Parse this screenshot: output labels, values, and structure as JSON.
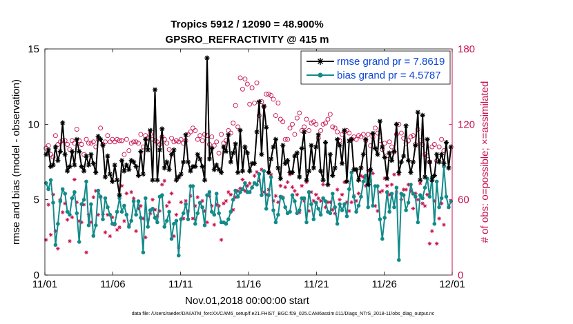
{
  "chart_data": {
    "type": "line",
    "title": "Tropics 5912 / 12090 = 48.900%",
    "subtitle": "GPSRO_REFRACTIVITY @ 415 m",
    "xlabel": "Nov.01,2018 00:00:00 start",
    "ylabel": "rmse and bias (model - observation)",
    "y2label": "# of obs: o=possible; ×=assimilated",
    "footer": "data file: /Users/raeder/DAI/ATM_forcXX/CAM6_setup/f.e21.FHIST_BGC.f09_025.CAM6assim.011/Diags_NTrS_2018-11/obs_diag_output.nc",
    "xlim": [
      0,
      30
    ],
    "ylim": [
      0,
      15
    ],
    "y2lim": [
      0,
      180
    ],
    "x_tick_values": [
      0,
      5,
      10,
      15,
      20,
      25,
      30
    ],
    "x_tick_labels": [
      "11/01",
      "11/06",
      "11/11",
      "11/16",
      "11/21",
      "11/26",
      "12/01"
    ],
    "y_tick_values": [
      0,
      5,
      10,
      15
    ],
    "y_tick_labels": [
      "0",
      "5",
      "10",
      "15"
    ],
    "y2_tick_values": [
      0,
      60,
      120,
      180
    ],
    "y2_tick_labels": [
      "0",
      "60",
      "120",
      "180"
    ],
    "legend": {
      "location": "top-right",
      "entries": [
        "rmse grand pr = 7.8619",
        "bias grand pr = 4.5787"
      ]
    },
    "colors": {
      "rmse": "#000000",
      "bias": "#128a8a",
      "obs": "#c8104e",
      "legend_text": "#0a46d6",
      "y2": "#c8104e"
    },
    "series": [
      {
        "name": "rmse",
        "axis": "left",
        "values": [
          8.0,
          8.3,
          7.2,
          7.3,
          8.5,
          7.6,
          8.2,
          10.1,
          8.0,
          6.9,
          7.2,
          8.2,
          7.3,
          9.0,
          8.2,
          7.2,
          6.9,
          7.9,
          7.3,
          8.0,
          7.4,
          6.8,
          9.2,
          9.0,
          8.6,
          6.5,
          7.9,
          6.7,
          6.2,
          7.3,
          6.3,
          5.3,
          7.6,
          6.9,
          7.3,
          7.0,
          7.6,
          7.5,
          7.2,
          6.6,
          8.2,
          6.7,
          9.0,
          8.3,
          9.6,
          6.3,
          12.3,
          6.3,
          8.3,
          9.7,
          7.1,
          7.5,
          7.0,
          8.0,
          8.3,
          6.3,
          6.5,
          6.7,
          7.5,
          9.3,
          7.5,
          6.9,
          7.2,
          7.2,
          8.0,
          7.7,
          7.2,
          6.3,
          14.4,
          7.7,
          8.4,
          7.0,
          7.3,
          7.0,
          6.8,
          8.5,
          8.2,
          9.3,
          7.5,
          8.1,
          8.7,
          6.8,
          9.6,
          6.9,
          8.5,
          8.1,
          6.9,
          7.4,
          7.4,
          9.5,
          11.5,
          8.0,
          11.2,
          9.8,
          6.8,
          7.7,
          8.5,
          9.0,
          7.1,
          6.4,
          8.6,
          7.4,
          7.6,
          6.8,
          6.8,
          7.9,
          8.1,
          6.5,
          8.4,
          9.5,
          6.3,
          6.9,
          8.6,
          7.1,
          8.5,
          9.3,
          6.9,
          6.3,
          8.8,
          6.0,
          8.0,
          6.6,
          7.1,
          9.0,
          8.6,
          7.4,
          9.6,
          6.2,
          8.9,
          9.0,
          7.0,
          7.0,
          6.3,
          7.1,
          8.0,
          9.0,
          6.0,
          7.0,
          9.4,
          8.4,
          8.0,
          10.2,
          8.5,
          7.8,
          6.4,
          8.1,
          7.6,
          8.2,
          10.0,
          6.8,
          7.5,
          7.9,
          9.9,
          7.6,
          6.8,
          7.5,
          8.6,
          10.8,
          6.3,
          10.6,
          6.5,
          9.0,
          7.5,
          6.3,
          6.6,
          8.0,
          7.5,
          8.0,
          7.4,
          8.8,
          7.1,
          8.5
        ]
      },
      {
        "name": "bias",
        "axis": "left",
        "values": [
          6.1,
          5.7,
          6.3,
          4.8,
          2.0,
          3.4,
          4.9,
          5.7,
          5.4,
          4.2,
          4.0,
          5.1,
          5.5,
          4.1,
          2.2,
          4.7,
          5.0,
          6.2,
          3.3,
          4.7,
          2.6,
          3.3,
          5.6,
          5.2,
          3.7,
          5.1,
          4.5,
          4.0,
          3.4,
          3.4,
          4.2,
          5.1,
          4.2,
          4.6,
          4.0,
          3.2,
          3.6,
          4.9,
          4.0,
          4.9,
          3.8,
          1.5,
          5.1,
          3.2,
          4.3,
          4.4,
          3.8,
          3.5,
          5.2,
          5.3,
          3.2,
          3.6,
          4.2,
          2.4,
          3.4,
          3.6,
          1.3,
          3.7,
          4.1,
          4.7,
          3.7,
          5.9,
          5.9,
          3.4,
          4.1,
          4.8,
          4.5,
          3.3,
          5.3,
          5.5,
          4.2,
          4.0,
          5.4,
          4.1,
          3.5,
          3.5,
          3.4,
          3.7,
          4.2,
          5.0,
          5.6,
          5.2,
          5.5,
          5.7,
          6.1,
          5.5,
          5.5,
          5.8,
          6.1,
          6.0,
          6.7,
          5.3,
          6.9,
          4.4,
          5.3,
          6.5,
          4.3,
          3.5,
          4.0,
          5.2,
          5.1,
          4.5,
          4.1,
          4.2,
          5.3,
          4.9,
          4.1,
          4.3,
          5.1,
          5.1,
          3.5,
          5.5,
          4.7,
          3.7,
          4.8,
          4.4,
          4.0,
          5.1,
          4.9,
          4.2,
          4.1,
          5.4,
          4.5,
          3.4,
          4.7,
          4.3,
          4.7,
          3.9,
          5.7,
          6.8,
          5.2,
          4.2,
          4.6,
          5.2,
          6.2,
          6.6,
          4.5,
          6.9,
          4.6,
          5.9,
          5.9,
          3.7,
          2.4,
          3.8,
          5.5,
          4.2,
          5.4,
          4.5,
          5.8,
          1.0,
          5.4,
          5.3,
          4.3,
          4.8,
          6.0,
          5.4,
          5.2,
          3.5,
          5.3,
          5.1,
          5.8,
          6.4,
          5.2,
          6.5,
          3.4,
          6.2,
          4.5,
          5.1,
          7.2,
          5.2,
          4.5,
          4.9
        ]
      },
      {
        "name": "obs possible (o)",
        "axis": "right",
        "values": [
          101,
          103,
          96,
          94,
          111,
          104,
          106,
          107,
          107,
          104,
          100,
          107,
          105,
          116,
          107,
          104,
          96,
          108,
          105,
          105,
          106,
          102,
          108,
          117,
          104,
          106,
          111,
          106,
          108,
          106,
          108,
          107,
          107,
          96,
          108,
          99,
          105,
          106,
          106,
          105,
          112,
          102,
          111,
          109,
          112,
          108,
          107,
          106,
          104,
          110,
          108,
          105,
          100,
          109,
          106,
          107,
          106,
          108,
          105,
          107,
          112,
          114,
          117,
          115,
          108,
          111,
          107,
          112,
          111,
          104,
          110,
          103,
          106,
          97,
          112,
          105,
          107,
          115,
          113,
          121,
          135,
          118,
          157,
          148,
          156,
          152,
          136,
          149,
          137,
          153,
          127,
          138,
          134,
          144,
          144,
          143,
          140,
          127,
          137,
          124,
          122,
          108,
          108,
          117,
          120,
          112,
          125,
          129,
          115,
          118,
          124,
          115,
          121,
          122,
          120,
          109,
          115,
          120,
          121,
          124,
          128,
          118,
          117,
          114,
          107,
          112,
          114,
          115,
          113,
          108,
          110,
          108,
          111,
          110,
          112,
          107,
          112,
          103,
          110,
          117,
          113,
          107,
          100,
          105,
          95,
          106,
          102,
          98,
          112,
          120,
          113,
          109,
          105,
          107,
          110,
          111,
          104,
          116,
          107,
          104,
          96,
          95,
          90,
          102,
          104,
          91,
          102,
          108,
          99
        ]
      },
      {
        "name": "obs assimilated (x)",
        "axis": "right",
        "values": [
          28,
          56,
          32,
          64,
          35,
          21,
          60,
          50,
          57,
          44,
          27,
          46,
          76,
          58,
          43,
          42,
          56,
          18,
          48,
          42,
          62,
          67,
          48,
          62,
          48,
          34,
          48,
          31,
          46,
          40,
          36,
          38,
          71,
          43,
          65,
          40,
          66,
          61,
          35,
          53,
          55,
          45,
          30,
          44,
          49,
          60,
          52,
          47,
          51,
          72,
          75,
          55,
          58,
          65,
          31,
          48,
          22,
          58,
          45,
          59,
          51,
          63,
          45,
          55,
          62,
          57,
          59,
          51,
          42,
          63,
          55,
          40,
          56,
          55,
          28,
          57,
          59,
          66,
          64,
          52,
          62,
          67,
          69,
          76,
          67,
          71,
          73,
          70,
          79,
          82,
          75,
          84,
          66,
          64,
          68,
          80,
          59,
          63,
          58,
          71,
          62,
          70,
          74,
          80,
          70,
          67,
          64,
          50,
          71,
          59,
          74,
          51,
          66,
          59,
          64,
          61,
          59,
          72,
          54,
          58,
          58,
          52,
          49,
          68,
          60,
          64,
          74,
          58,
          51,
          58,
          63,
          59,
          65,
          79,
          78,
          71,
          83,
          75,
          81,
          55,
          51,
          66,
          67,
          77,
          71,
          64,
          72,
          80,
          66,
          80,
          60,
          68,
          68,
          72,
          67,
          53,
          65,
          60,
          73,
          57,
          55,
          64,
          25,
          35,
          59,
          25,
          45,
          57,
          40
        ]
      }
    ]
  }
}
